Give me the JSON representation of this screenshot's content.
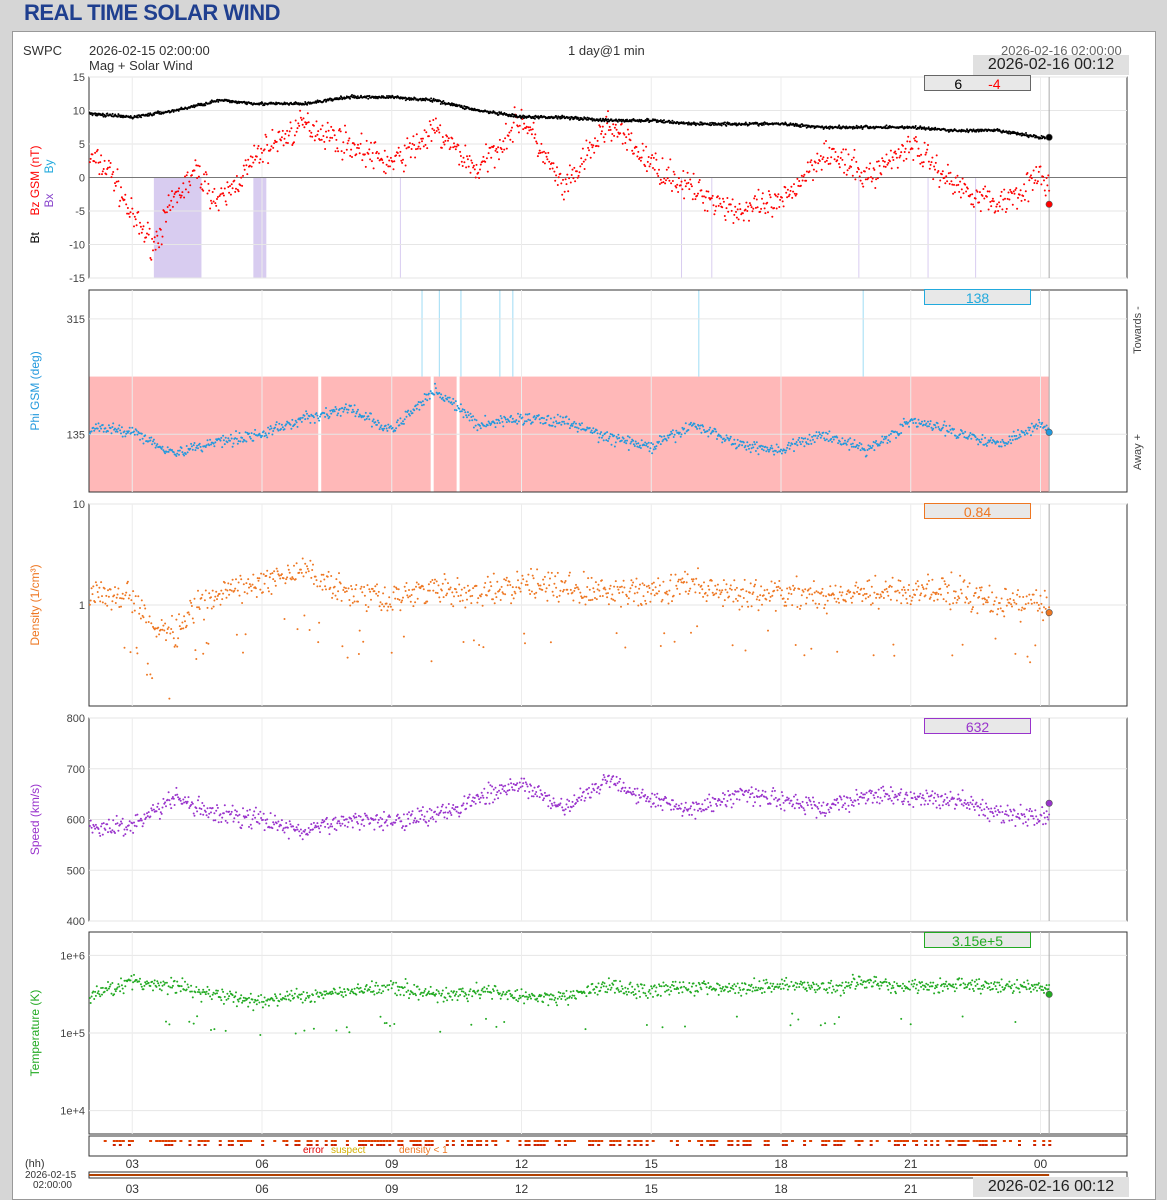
{
  "page_title": "REAL TIME SOLAR WIND",
  "header": {
    "source": "SWPC",
    "start_time": "2026-02-15 02:00:00",
    "span": "1 day@1 min",
    "end_time": "2026-02-16 02:00:00",
    "subtitle": "Mag + Solar Wind",
    "latest_stamp": "2026-02-16 00:12"
  },
  "colors": {
    "bt": "#000000",
    "bz": "#ff0000",
    "bx": "#8844cc",
    "by": "#22aadd",
    "phi": "#2299dd",
    "density": "#ee7722",
    "speed": "#9933cc",
    "temperature": "#22aa22",
    "phi_band": "#ffb8b8",
    "bz_neg_band": "#d8ccf0"
  },
  "axis_labels": {
    "bt": "Bt",
    "bz": "Bz GSM (nT)",
    "bx": "Bx",
    "by": "By",
    "phi": "Phi GSM (deg)",
    "towards": "Towards -",
    "away": "Away +",
    "density": "Density (1/cm³)",
    "speed": "Speed (km/s)",
    "temperature": "Temperature (K)"
  },
  "readouts": {
    "bt": "6",
    "bz": "-4",
    "phi": "138",
    "density": "0.84",
    "speed": "632",
    "temperature": "3.15e+5"
  },
  "quality": {
    "error": "error",
    "suspect": "suspect",
    "density_low": "density < 1"
  },
  "time_axis": {
    "unit_label": "(hh)",
    "ticks": [
      "03",
      "06",
      "09",
      "12",
      "15",
      "18",
      "21",
      "00"
    ],
    "start_date": "2026-02-15",
    "start_clock": "02:00:00"
  },
  "chart_data": [
    {
      "type": "scatter",
      "name": "mag",
      "xlim": [
        2,
        26
      ],
      "ylim": [
        -15,
        15
      ],
      "yticks": [
        "15",
        "10",
        "5",
        "0",
        "-5",
        "-10",
        "-15"
      ],
      "series": [
        {
          "name": "Bt",
          "x": [
            2,
            3,
            4,
            5,
            6,
            7,
            8,
            9,
            10,
            11,
            12,
            13,
            14,
            15,
            16,
            17,
            18,
            19,
            20,
            21,
            22,
            23,
            24,
            25,
            26
          ],
          "y": [
            9.5,
            9,
            10,
            11.5,
            11,
            11,
            12,
            12,
            11.5,
            10,
            9,
            9,
            8.5,
            8.5,
            8,
            8,
            8,
            7.5,
            7.5,
            7.5,
            7,
            7,
            6,
            5.5,
            6
          ]
        },
        {
          "name": "Bz",
          "x": [
            2,
            2.5,
            3,
            3.5,
            4,
            4.5,
            5,
            6,
            7,
            8,
            9,
            10,
            11,
            12,
            13,
            14,
            15,
            16,
            17,
            18,
            19,
            20,
            21,
            22,
            23,
            24,
            25,
            26
          ],
          "y": [
            3,
            1,
            -6,
            -10,
            -3,
            1,
            -4,
            4,
            8,
            5,
            2,
            7,
            1,
            9,
            -2,
            8,
            2,
            -2,
            -5,
            -4,
            4,
            0,
            5,
            -1,
            -4,
            0,
            -3,
            -4
          ]
        }
      ]
    },
    {
      "type": "scatter",
      "name": "phi",
      "ylim": [
        45,
        360
      ],
      "yticks": [
        "315",
        "135"
      ],
      "x": [
        2,
        3,
        4,
        5,
        6,
        7,
        8,
        9,
        10,
        11,
        12,
        13,
        14,
        15,
        16,
        17,
        18,
        19,
        20,
        21,
        22,
        23,
        24,
        25,
        26
      ],
      "y": [
        145,
        140,
        105,
        125,
        135,
        160,
        175,
        140,
        205,
        150,
        160,
        155,
        130,
        115,
        150,
        120,
        110,
        135,
        110,
        155,
        140,
        120,
        150,
        110,
        138
      ]
    },
    {
      "type": "scatter",
      "name": "density",
      "yscale": "log",
      "ylim": [
        0.1,
        10
      ],
      "yticks": [
        "10",
        "1"
      ],
      "x": [
        2,
        3,
        3.5,
        4,
        5,
        6,
        7,
        8,
        9,
        10,
        11,
        12,
        13,
        14,
        15,
        16,
        17,
        18,
        19,
        20,
        21,
        22,
        23,
        24,
        25,
        26
      ],
      "y": [
        1.4,
        1.2,
        0.6,
        0.5,
        1.3,
        1.6,
        2.2,
        1.3,
        1.2,
        1.4,
        1.3,
        1.6,
        1.5,
        1.3,
        1.4,
        1.6,
        1.2,
        1.3,
        1.2,
        1.3,
        1.4,
        1.3,
        1.1,
        1.0,
        0.9,
        0.84
      ]
    },
    {
      "type": "scatter",
      "name": "speed",
      "ylim": [
        400,
        800
      ],
      "yticks": [
        "800",
        "700",
        "600",
        "500",
        "400"
      ],
      "x": [
        2,
        3,
        4,
        5,
        6,
        7,
        8,
        9,
        10,
        11,
        12,
        13,
        14,
        15,
        16,
        17,
        18,
        19,
        20,
        21,
        22,
        23,
        24,
        25,
        26
      ],
      "y": [
        580,
        590,
        640,
        610,
        600,
        575,
        600,
        600,
        610,
        640,
        670,
        620,
        680,
        640,
        620,
        650,
        640,
        620,
        650,
        640,
        640,
        610,
        605,
        615,
        632
      ]
    },
    {
      "type": "scatter",
      "name": "temperature",
      "yscale": "log",
      "ylim": [
        5000,
        2000000
      ],
      "yticks": [
        "1e+6",
        "1e+5",
        "1e+4"
      ],
      "x": [
        2,
        3,
        4,
        5,
        6,
        7,
        8,
        9,
        10,
        11,
        12,
        13,
        14,
        15,
        16,
        17,
        18,
        19,
        20,
        21,
        22,
        23,
        24,
        25,
        26
      ],
      "y": [
        300000,
        450000,
        400000,
        300000,
        250000,
        300000,
        350000,
        400000,
        300000,
        350000,
        300000,
        280000,
        400000,
        350000,
        400000,
        380000,
        420000,
        380000,
        450000,
        380000,
        420000,
        400000,
        380000,
        300000,
        315000
      ]
    }
  ]
}
